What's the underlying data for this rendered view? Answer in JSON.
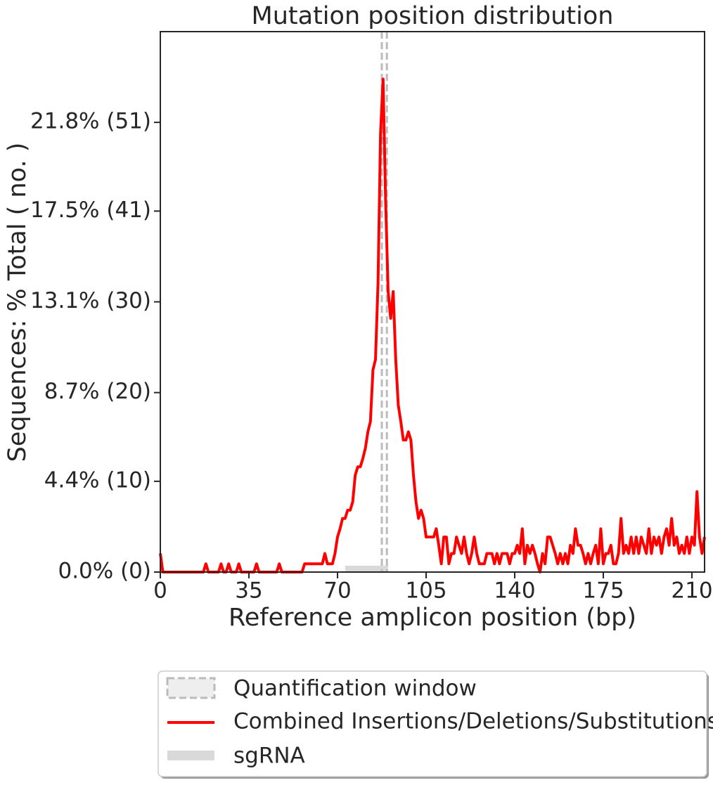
{
  "chart_data": {
    "type": "line",
    "title": "Mutation position distribution",
    "x_label": "Reference amplicon position (bp)",
    "y_label": "Sequences: % Total ( no. )",
    "x": [
      0,
      1,
      2,
      3,
      4,
      5,
      6,
      7,
      8,
      9,
      10,
      11,
      12,
      13,
      14,
      15,
      16,
      17,
      18,
      19,
      20,
      21,
      22,
      23,
      24,
      25,
      26,
      27,
      28,
      29,
      30,
      31,
      32,
      33,
      34,
      35,
      36,
      37,
      38,
      39,
      40,
      41,
      42,
      43,
      44,
      45,
      46,
      47,
      48,
      49,
      50,
      51,
      52,
      53,
      54,
      55,
      56,
      57,
      58,
      59,
      60,
      61,
      62,
      63,
      64,
      65,
      66,
      67,
      68,
      69,
      70,
      71,
      72,
      73,
      74,
      75,
      76,
      77,
      78,
      79,
      80,
      81,
      82,
      83,
      84,
      85,
      86,
      87,
      88,
      89,
      90,
      91,
      92,
      93,
      94,
      95,
      96,
      97,
      98,
      99,
      100,
      101,
      102,
      103,
      104,
      105,
      106,
      107,
      108,
      109,
      110,
      111,
      112,
      113,
      114,
      115,
      116,
      117,
      118,
      119,
      120,
      121,
      122,
      123,
      124,
      125,
      126,
      127,
      128,
      129,
      130,
      131,
      132,
      133,
      134,
      135,
      136,
      137,
      138,
      139,
      140,
      141,
      142,
      143,
      144,
      145,
      146,
      147,
      148,
      149,
      150,
      151,
      152,
      153,
      154,
      155,
      156,
      157,
      158,
      159,
      160,
      161,
      162,
      163,
      164,
      165,
      166,
      167,
      168,
      169,
      170,
      171,
      172,
      173,
      174,
      175,
      176,
      177,
      178,
      179,
      180,
      181,
      182,
      183,
      184,
      185,
      186,
      187,
      188,
      189,
      190,
      191,
      192,
      193,
      194,
      195,
      196,
      197,
      198,
      199,
      200,
      201,
      202,
      203,
      204,
      205,
      206,
      207,
      208,
      209,
      210,
      211,
      212,
      213,
      214,
      215
    ],
    "series": [
      {
        "name": "Combined Insertions/Deletions/Substitutions",
        "color": "#ff0000",
        "values": [
          0.9,
          0,
          0,
          0,
          0,
          0,
          0,
          0,
          0,
          0,
          0,
          0,
          0,
          0,
          0,
          0,
          0,
          0,
          0.4,
          0,
          0,
          0,
          0,
          0,
          0.4,
          0,
          0,
          0.4,
          0,
          0,
          0,
          0.4,
          0,
          0,
          0,
          0,
          0,
          0,
          0.4,
          0,
          0,
          0,
          0,
          0,
          0,
          0,
          0,
          0.4,
          0,
          0,
          0,
          0,
          0,
          0,
          0,
          0,
          0,
          0.4,
          0.4,
          0.4,
          0.4,
          0.4,
          0.4,
          0.4,
          0.4,
          0.9,
          0.4,
          0.4,
          0.4,
          0.9,
          1.7,
          2.1,
          2.6,
          2.6,
          3.0,
          3.0,
          3.4,
          4.7,
          5.1,
          5.1,
          5.5,
          6.0,
          6.8,
          7.3,
          9.8,
          10.3,
          14.0,
          21.3,
          23.9,
          18.0,
          13.6,
          12.3,
          13.6,
          10.3,
          8.1,
          7.3,
          6.4,
          6.4,
          6.8,
          6.4,
          4.7,
          3.4,
          2.6,
          3.0,
          2.6,
          1.7,
          1.7,
          1.7,
          1.7,
          2.1,
          1.3,
          0.4,
          1.7,
          1.7,
          0.4,
          0.9,
          0.9,
          1.7,
          1.3,
          0.9,
          1.7,
          0.9,
          0.4,
          0.9,
          1.7,
          0.9,
          0.4,
          0.4,
          0.4,
          0.9,
          0.9,
          0.9,
          0.4,
          0.9,
          0.4,
          0.9,
          0.9,
          0.9,
          0.4,
          0.9,
          0.9,
          1.3,
          0.9,
          2.1,
          0.4,
          1.3,
          0.9,
          1.3,
          0.9,
          0.4,
          0,
          0.9,
          0.4,
          1.7,
          1.7,
          1.3,
          0.9,
          0.4,
          0.9,
          0.4,
          0.9,
          0.4,
          1.3,
          0.9,
          2.1,
          1.3,
          1.3,
          0.9,
          0.4,
          0.9,
          0.4,
          0.9,
          1.3,
          0.4,
          2.1,
          0.4,
          0.9,
          0.9,
          1.3,
          0.4,
          0.4,
          0.9,
          2.6,
          0.9,
          1.3,
          0.9,
          1.7,
          0.9,
          1.7,
          0.9,
          1.7,
          1.3,
          0.9,
          2.1,
          0.9,
          1.7,
          1.3,
          1.7,
          0.9,
          1.7,
          2.1,
          1.3,
          2.6,
          1.3,
          1.7,
          0.9,
          1.3,
          0.9,
          1.7,
          0.9,
          1.7,
          1.3,
          3.9,
          1.7,
          0.9,
          1.7
        ]
      }
    ],
    "quantification_window": {
      "name": "Quantification window",
      "color": "#bbbbbb",
      "range": [
        87.5,
        89.5
      ]
    },
    "sgrna": {
      "name": "sgRNA",
      "color": "#d9d9d9",
      "range": [
        73,
        90
      ]
    },
    "xlim": [
      0,
      215
    ],
    "xticks": [
      0,
      35,
      70,
      105,
      140,
      175,
      210
    ],
    "ylim": [
      0,
      26.2
    ],
    "yticks": [
      {
        "value": 0,
        "label": "0.0% (0)"
      },
      {
        "value": 4.4,
        "label": "4.4% (10)"
      },
      {
        "value": 8.7,
        "label": "8.7% (20)"
      },
      {
        "value": 13.1,
        "label": "13.1% (30)"
      },
      {
        "value": 17.5,
        "label": "17.5% (41)"
      },
      {
        "value": 21.8,
        "label": "21.8% (51)"
      }
    ],
    "legend": "bottom"
  }
}
